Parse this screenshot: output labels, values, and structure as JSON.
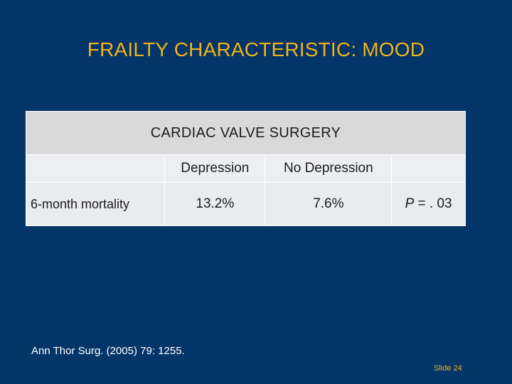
{
  "slide": {
    "title": "FRAILTY CHARACTERISTIC: MOOD",
    "citation": "Ann Thor Surg. (2005) 79: 1255.",
    "slide_number": "Slide 24"
  },
  "table": {
    "header": "CARDIAC VALVE SURGERY",
    "columns": [
      "",
      "Depression",
      "No Depression",
      ""
    ],
    "rows": [
      {
        "label": "6-month mortality",
        "depression": "13.2%",
        "no_depression": "7.6%",
        "p_label": "P",
        "p_value": " = . 03"
      }
    ]
  },
  "colors": {
    "background": "#033568",
    "title": "#f0b41c",
    "header_fill": "#d9d9d9",
    "cell_fill": "#eceef2"
  }
}
